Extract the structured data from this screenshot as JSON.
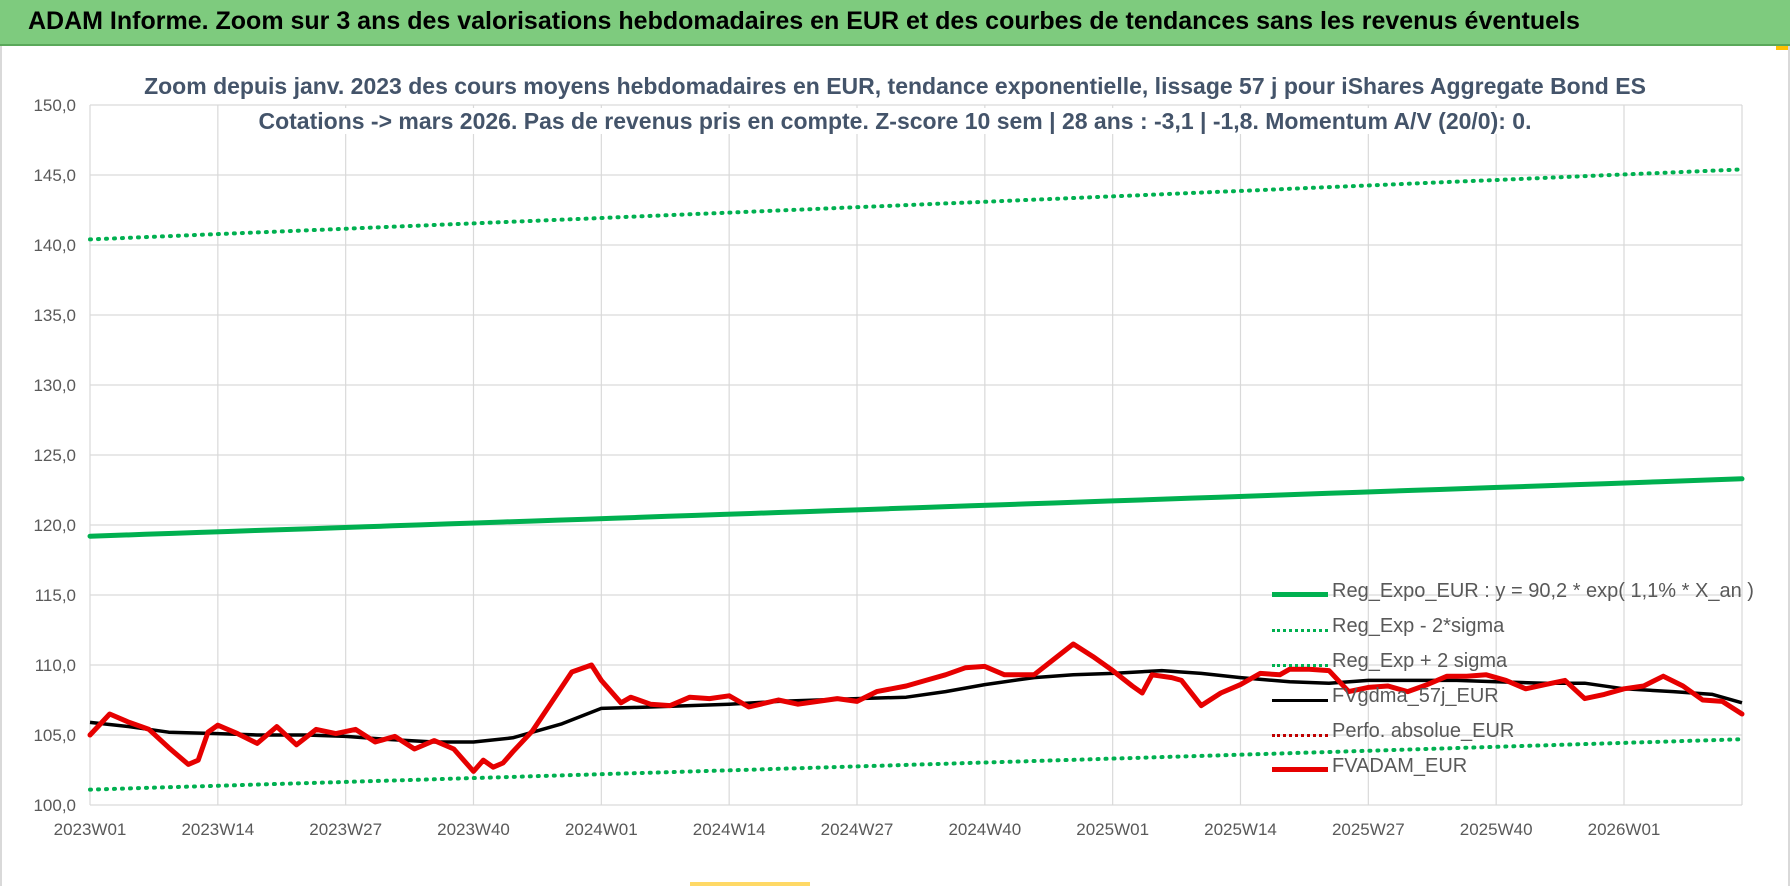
{
  "banner": {
    "title": "ADAM Informe. Zoom sur 3 ans des valorisations hebdomadaires en EUR et des courbes de tendances sans les revenus éventuels"
  },
  "colors": {
    "banner_bg": "#7ecb7e",
    "trend": "#00b050",
    "band": "#00b050",
    "smooth": "#000000",
    "perf": "#c00000",
    "fvadam": "#e60000",
    "title": "#44546a"
  },
  "chart_data": {
    "type": "line",
    "title": "Zoom depuis janv. 2023 des cours moyens hebdomadaires en EUR, tendance exponentielle, lissage 57 j pour iShares Aggregate Bond ES",
    "subtitle": "Cotations -> mars 2026. Pas de revenus pris en compte. Z-score 10 sem | 28 ans : -3,1 | -1,8. Momentum A/V (20/0): 0.",
    "xlabel": "",
    "ylabel": "",
    "ylim": [
      100,
      150
    ],
    "yticks": [
      "100,0",
      "105,0",
      "110,0",
      "115,0",
      "120,0",
      "125,0",
      "130,0",
      "135,0",
      "140,0",
      "145,0",
      "150,0"
    ],
    "xticks": [
      "2023W01",
      "2023W14",
      "2023W27",
      "2023W40",
      "2024W01",
      "2024W14",
      "2024W27",
      "2024W40",
      "2025W01",
      "2025W14",
      "2025W27",
      "2025W40",
      "2026W01"
    ],
    "x_range_weeks": [
      0,
      168
    ],
    "grid": true,
    "legend_position": "bottom-right",
    "series": [
      {
        "name": "Reg_Expo_EUR : y = 90,2 * exp( 1,1% *  X_an )",
        "style": "thick",
        "color": "#00b050",
        "x": [
          0,
          168
        ],
        "y": [
          119.2,
          123.3
        ]
      },
      {
        "name": "Reg_Exp - 2*sigma",
        "style": "dotted",
        "color": "#00b050",
        "x": [
          0,
          168
        ],
        "y": [
          101.1,
          104.7
        ]
      },
      {
        "name": "Reg_Exp + 2 sigma",
        "style": "dotted",
        "color": "#00b050",
        "x": [
          0,
          168
        ],
        "y": [
          140.4,
          145.4
        ]
      },
      {
        "name": "FVgdma_57j_EUR",
        "style": "solid",
        "color": "#000000",
        "x": [
          0,
          4,
          8,
          13,
          17,
          22,
          26,
          30,
          35,
          39,
          43,
          48,
          52,
          57,
          61,
          65,
          70,
          74,
          78,
          83,
          87,
          91,
          96,
          100,
          104,
          109,
          113,
          117,
          122,
          126,
          130,
          135,
          139,
          143,
          148,
          152,
          156,
          161,
          165,
          168
        ],
        "y": [
          105.9,
          105.6,
          105.2,
          105.1,
          105.0,
          105.0,
          104.9,
          104.7,
          104.5,
          104.5,
          104.8,
          105.8,
          106.9,
          107.0,
          107.1,
          107.2,
          107.4,
          107.5,
          107.6,
          107.7,
          108.1,
          108.6,
          109.1,
          109.3,
          109.4,
          109.6,
          109.4,
          109.1,
          108.8,
          108.7,
          108.9,
          108.9,
          108.9,
          108.8,
          108.7,
          108.7,
          108.3,
          108.1,
          107.9,
          107.3
        ]
      },
      {
        "name": "Perfo. absolue_EUR",
        "style": "dotted",
        "color": "#c00000",
        "x": [],
        "y": []
      },
      {
        "name": "FVADAM_EUR",
        "style": "thick",
        "color": "#e60000",
        "x": [
          0,
          2,
          4,
          6,
          8,
          10,
          11,
          12,
          13,
          15,
          17,
          19,
          21,
          23,
          25,
          27,
          29,
          31,
          33,
          35,
          37,
          39,
          40,
          41,
          42,
          43,
          45,
          47,
          49,
          51,
          52,
          54,
          55,
          57,
          59,
          61,
          63,
          65,
          67,
          70,
          72,
          74,
          76,
          78,
          80,
          83,
          85,
          87,
          89,
          91,
          93,
          96,
          98,
          100,
          102,
          104,
          106,
          107,
          108,
          110,
          111,
          113,
          115,
          117,
          119,
          121,
          122,
          124,
          126,
          128,
          130,
          132,
          134,
          136,
          138,
          140,
          142,
          144,
          146,
          148,
          150,
          152,
          154,
          156,
          158,
          160,
          162,
          164,
          166,
          168
        ],
        "y": [
          105.0,
          106.5,
          105.9,
          105.4,
          104.1,
          102.9,
          103.2,
          105.2,
          105.7,
          105.1,
          104.4,
          105.6,
          104.3,
          105.4,
          105.1,
          105.4,
          104.5,
          104.9,
          104.0,
          104.6,
          104.0,
          102.4,
          103.2,
          102.7,
          103.0,
          103.8,
          105.3,
          107.4,
          109.5,
          110.0,
          108.9,
          107.3,
          107.7,
          107.2,
          107.1,
          107.7,
          107.6,
          107.8,
          107.0,
          107.5,
          107.2,
          107.4,
          107.6,
          107.4,
          108.1,
          108.5,
          108.9,
          109.3,
          109.8,
          109.9,
          109.3,
          109.3,
          110.4,
          111.5,
          110.6,
          109.6,
          108.5,
          108.0,
          109.3,
          109.1,
          108.9,
          107.1,
          108.0,
          108.6,
          109.4,
          109.3,
          109.7,
          109.7,
          109.6,
          108.1,
          108.4,
          108.5,
          108.1,
          108.6,
          109.2,
          109.2,
          109.3,
          108.9,
          108.3,
          108.6,
          108.9,
          107.6,
          107.9,
          108.3,
          108.5,
          109.2,
          108.5,
          107.5,
          107.4,
          106.5
        ]
      }
    ]
  }
}
